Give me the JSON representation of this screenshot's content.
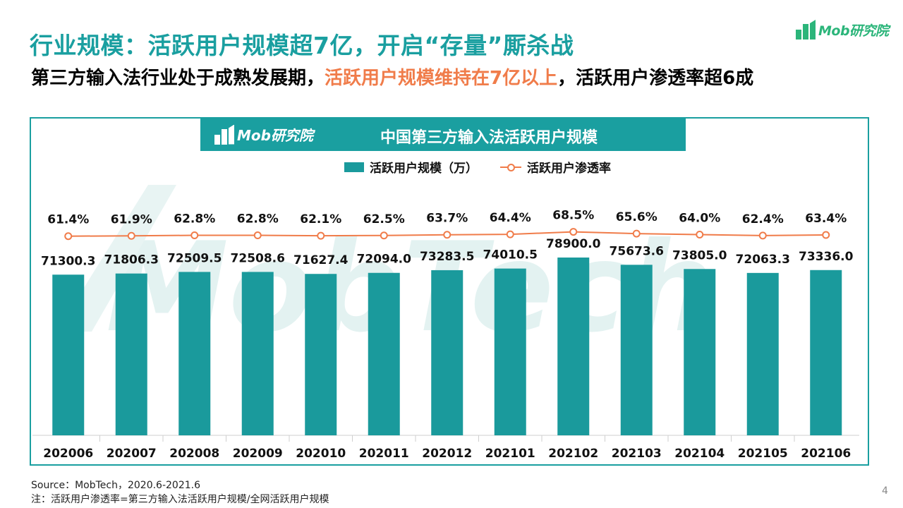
{
  "header": {
    "title": "行业规模：活跃用户规模超7亿，开启“存量”厮杀战",
    "subtitle_pre": "第三方输入法行业处于成熟发展期，",
    "subtitle_highlight": "活跃用户规模维持在7亿以上",
    "subtitle_post": "，活跃用户渗透率超6成",
    "brand": "Mob研究院"
  },
  "banner": {
    "brand": "Mob研究院",
    "title": "中国第三方输入法活跃用户规模"
  },
  "watermark": "MobTech",
  "colors": {
    "teal": "#1a9a9c",
    "title_teal": "#1a9fa0",
    "orange": "#f07c4a",
    "brand_green": "#2bb57a"
  },
  "chart_data": {
    "type": "bar",
    "categories": [
      "202006",
      "202007",
      "202008",
      "202009",
      "202010",
      "202011",
      "202012",
      "202101",
      "202102",
      "202103",
      "202104",
      "202105",
      "202106"
    ],
    "series": [
      {
        "name": "活跃用户规模（万）",
        "type": "bar",
        "values": [
          71300.3,
          71806.3,
          72509.5,
          72508.6,
          71627.4,
          72094.0,
          73283.5,
          74010.5,
          78900.0,
          75673.6,
          73805.0,
          72063.3,
          73336.0
        ],
        "labels": [
          "71300.3",
          "71806.3",
          "72509.5",
          "72508.6",
          "71627.4",
          "72094.0",
          "73283.5",
          "74010.5",
          "78900.0",
          "75673.6",
          "73805.0",
          "72063.3",
          "73336.0"
        ]
      },
      {
        "name": "活跃用户渗透率",
        "type": "line",
        "values": [
          61.4,
          61.9,
          62.8,
          62.8,
          62.1,
          62.5,
          63.7,
          64.4,
          68.5,
          65.6,
          64.0,
          62.4,
          63.4
        ],
        "labels": [
          "61.4%",
          "61.9%",
          "62.8%",
          "62.8%",
          "62.1%",
          "62.5%",
          "63.7%",
          "64.4%",
          "68.5%",
          "65.6%",
          "64.0%",
          "62.4%",
          "63.4%"
        ]
      }
    ],
    "legend_position": "top-center"
  },
  "footer": {
    "source": "Source：MobTech，2020.6-2021.6",
    "note": "注：活跃用户渗透率=第三方输入法活跃用户规模/全网活跃用户规模",
    "page": "4"
  }
}
